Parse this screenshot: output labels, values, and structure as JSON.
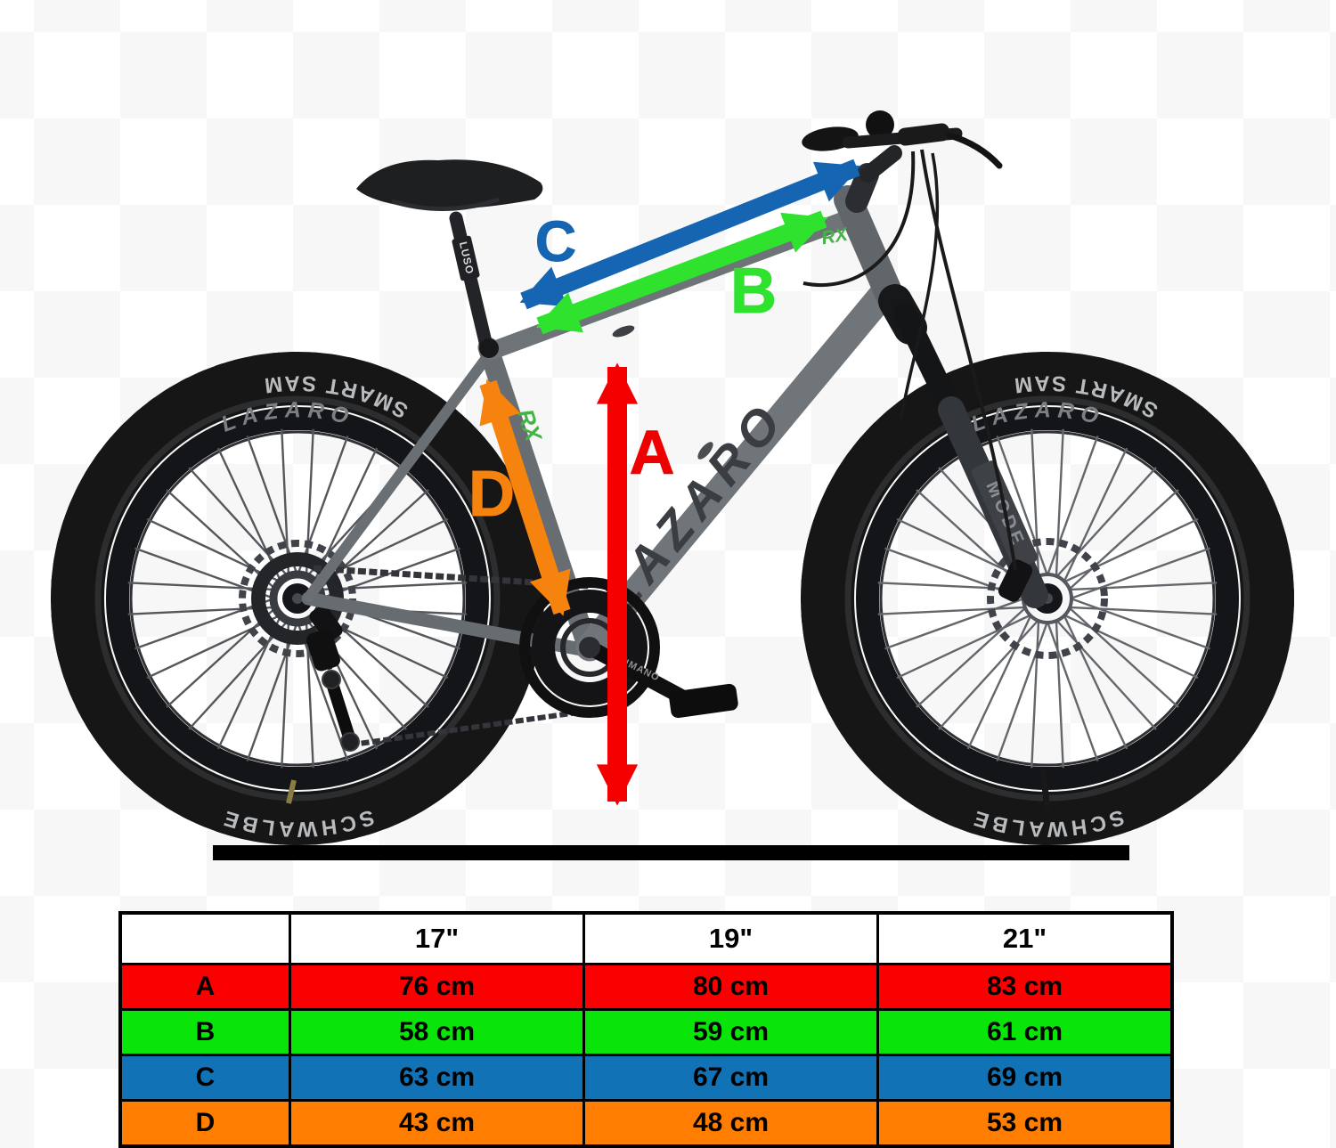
{
  "letters": {
    "a": "A",
    "b": "B",
    "c": "C",
    "d": "D"
  },
  "colors": {
    "arrow_a": "#f40000",
    "arrow_b": "#2ee22e",
    "arrow_c": "#1565b2",
    "arrow_d": "#f5830e",
    "table_a": "#fb0000",
    "table_b": "#09e509",
    "table_c": "#1272b6",
    "table_d": "#ff7d01",
    "frame_gray": "#6e7378",
    "ground": "#000000"
  },
  "bike": {
    "frame_brand": "LAZARO",
    "frame_logo": "RX",
    "fork_text": "MODE",
    "seatpost_text": "LUSO",
    "crank_text": "SHIMANO",
    "tire_model": "SMART SAM",
    "tire_brand": "SCHWALBE",
    "rim_text": "LAZARO"
  },
  "table": {
    "header": [
      "",
      "17\"",
      "19\"",
      "21\""
    ],
    "rows": [
      {
        "label": "A",
        "color": "#fb0000",
        "values": [
          "76 cm",
          "80 cm",
          "83 cm"
        ]
      },
      {
        "label": "B",
        "color": "#09e509",
        "values": [
          "58 cm",
          "59 cm",
          "61 cm"
        ]
      },
      {
        "label": "C",
        "color": "#1272b6",
        "values": [
          "63 cm",
          "67 cm",
          "69 cm"
        ]
      },
      {
        "label": "D",
        "color": "#ff7d01",
        "values": [
          "43 cm",
          "48 cm",
          "53 cm"
        ]
      }
    ]
  }
}
